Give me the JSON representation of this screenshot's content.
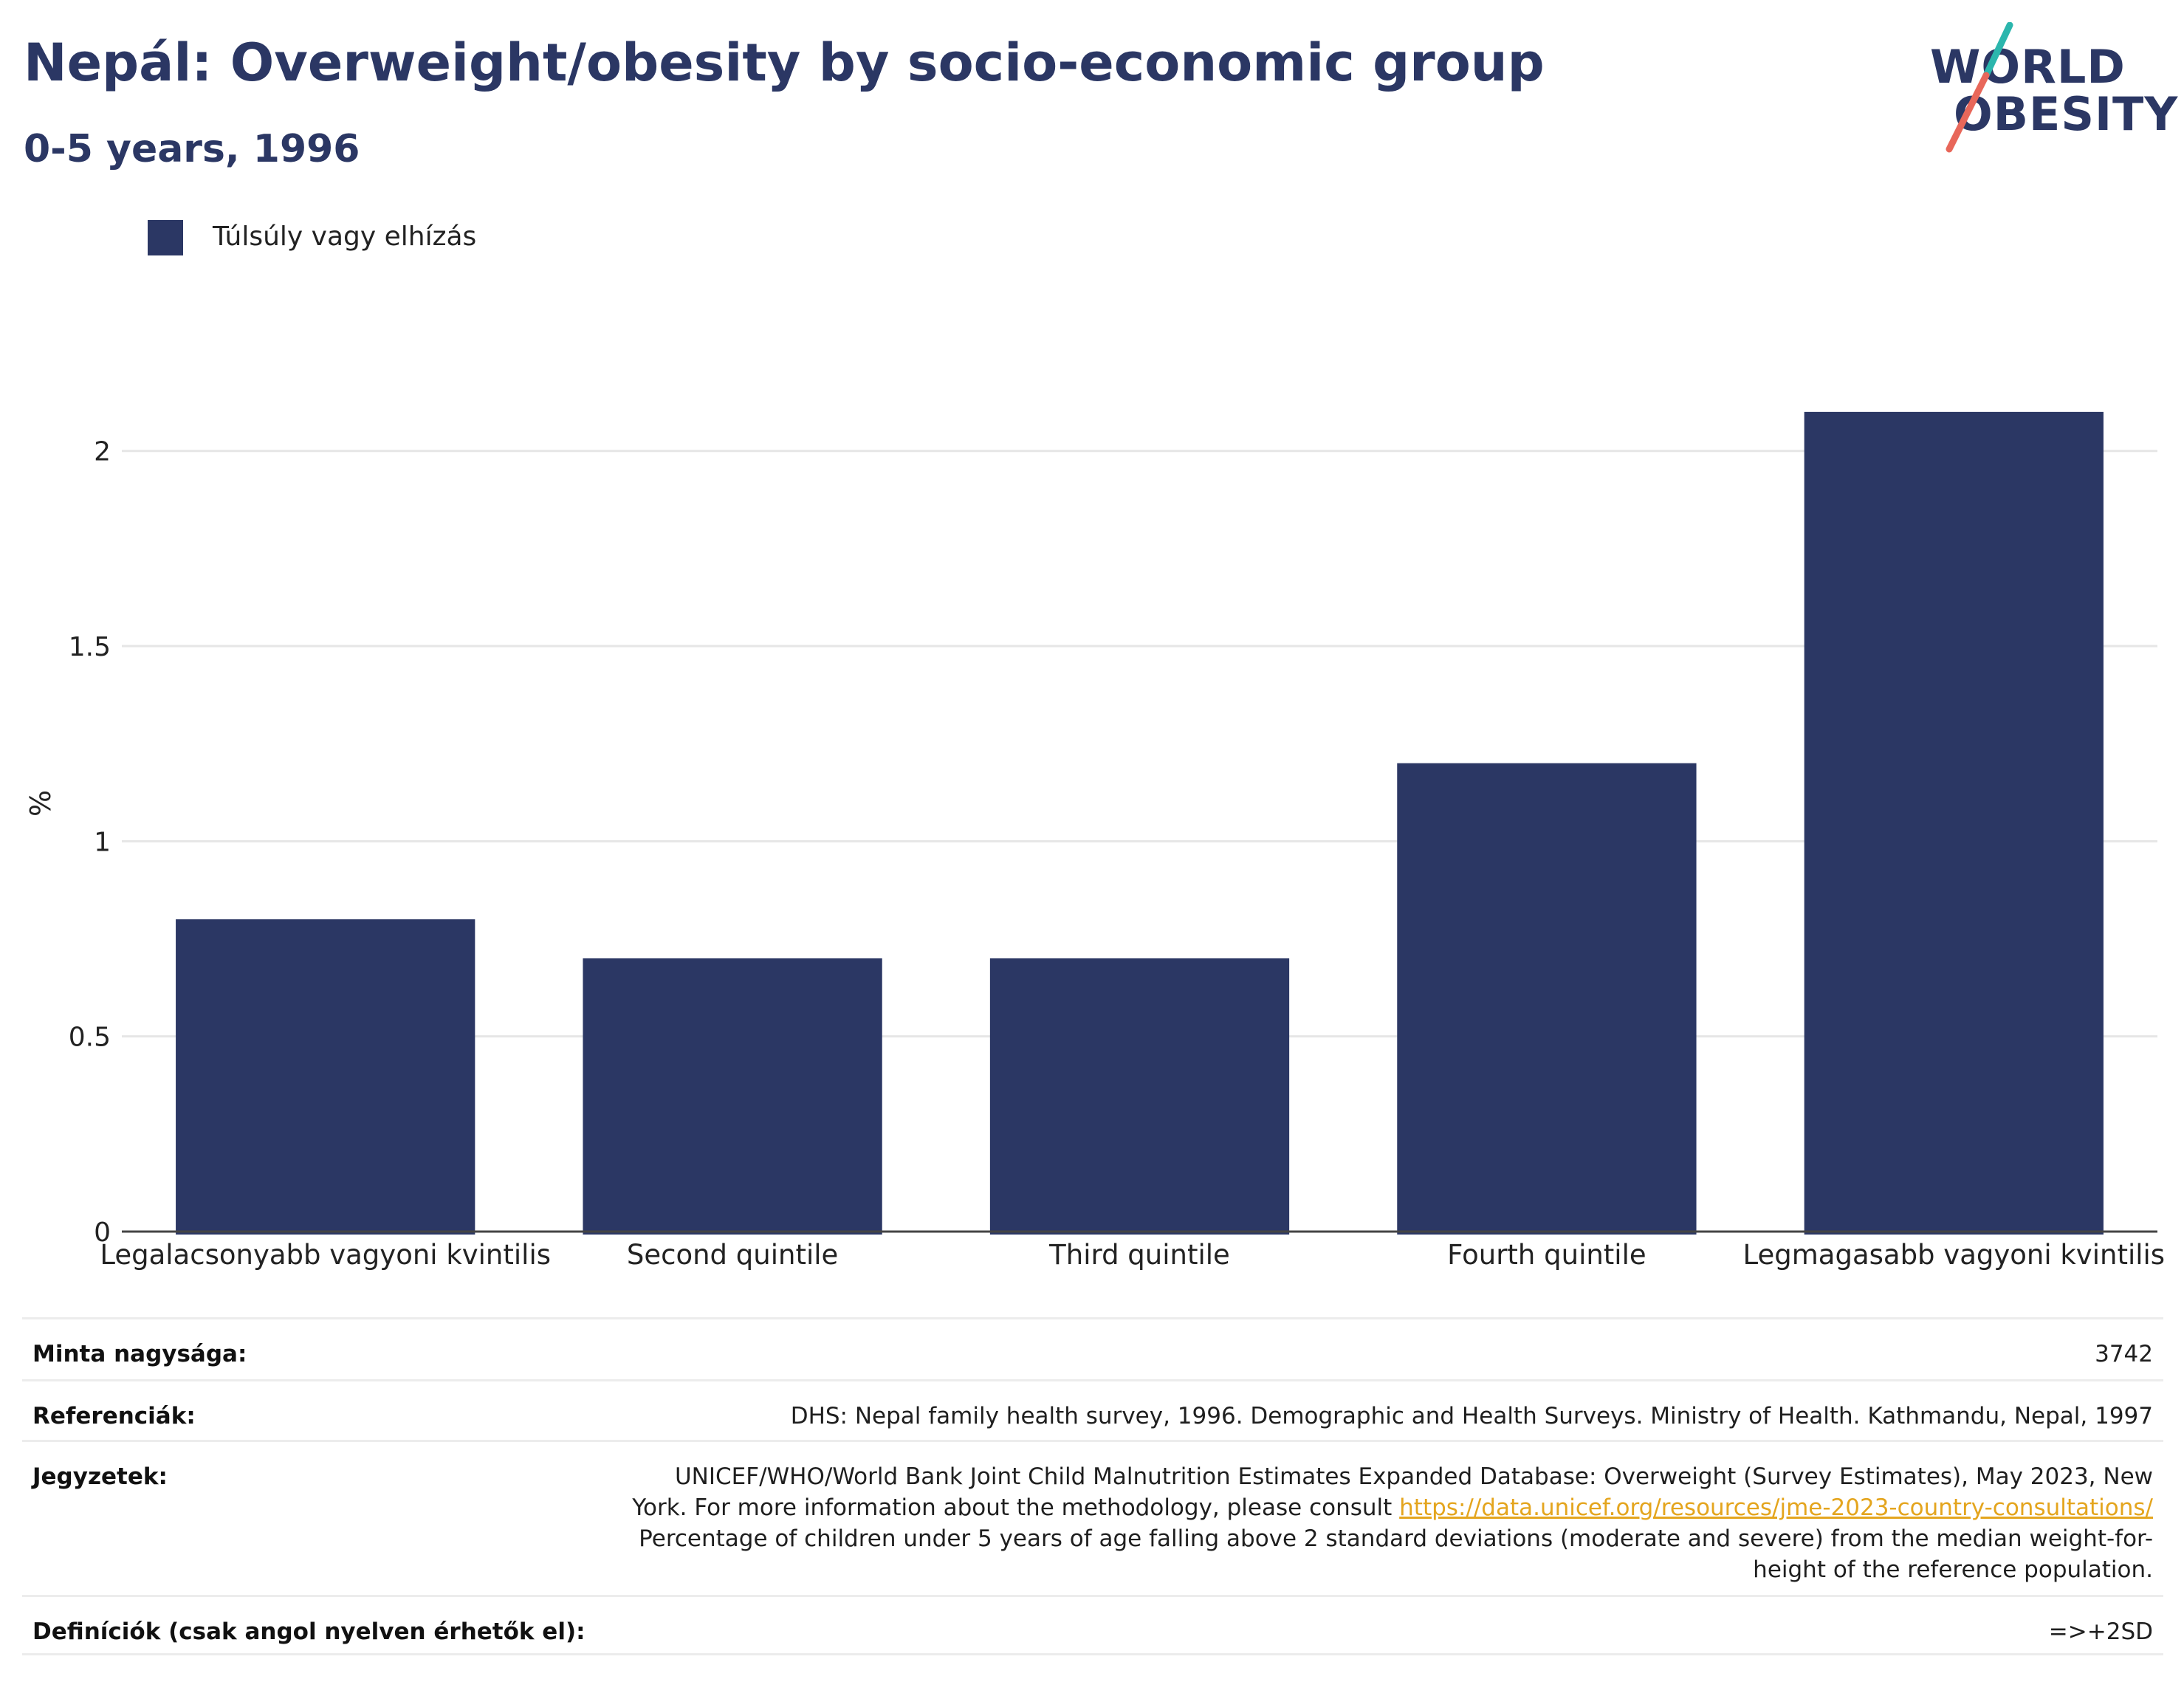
{
  "header": {
    "title": "Nepál: Overweight/obesity by socio-economic group",
    "subtitle": "0-5 years, 1996"
  },
  "logo": {
    "line1": "WORLD",
    "line2": "OBESITY"
  },
  "colors": {
    "bar": "#2b3764",
    "title": "#2b3764",
    "link": "#e4a51e",
    "logo_teal": "#2bb6ad",
    "logo_coral": "#e8675a"
  },
  "legend": {
    "label": "Túlsúly vagy elhízás"
  },
  "chart_data": {
    "type": "bar",
    "categories": [
      "Legalacsonyabb vagyoni kvintilis",
      "Second quintile",
      "Third quintile",
      "Fourth quintile",
      "Legmagasabb vagyoni kvintilis"
    ],
    "series": [
      {
        "name": "Túlsúly vagy elhízás",
        "values": [
          0.8,
          0.7,
          0.7,
          1.2,
          2.1
        ]
      }
    ],
    "ylabel": "%",
    "ylim": [
      0,
      2.2
    ],
    "yticks": [
      0,
      0.5,
      1,
      1.5,
      2
    ],
    "ytick_labels": [
      "0",
      "0.5",
      "1",
      "1.5",
      "2"
    ],
    "grid": true,
    "legend_position": "top-left"
  },
  "footer": {
    "sample_label": "Minta nagysága:",
    "sample_value": "3742",
    "refs_label": "Referenciák:",
    "refs_value": "DHS: Nepal family health survey, 1996. Demographic and Health Surveys. Ministry of Health. Kathmandu, Nepal, 1997",
    "notes_label": "Jegyzetek:",
    "notes_line1": "UNICEF/WHO/World Bank Joint Child Malnutrition Estimates Expanded Database: Overweight (Survey Estimates), May 2023, New",
    "notes_line2_prefix": "York. For more information about the methodology, please consult",
    "notes_link": "https://data.unicef.org/resources/jme-2023-country-consultations/",
    "notes_line3": "Percentage of children under 5 years of age falling above 2 standard deviations (moderate and severe) from the median weight-for-",
    "notes_line4": "height of the reference population.",
    "definitions_label": "Definíciók (csak angol nyelven érhetők el):",
    "definitions_value": "=>+2SD"
  }
}
